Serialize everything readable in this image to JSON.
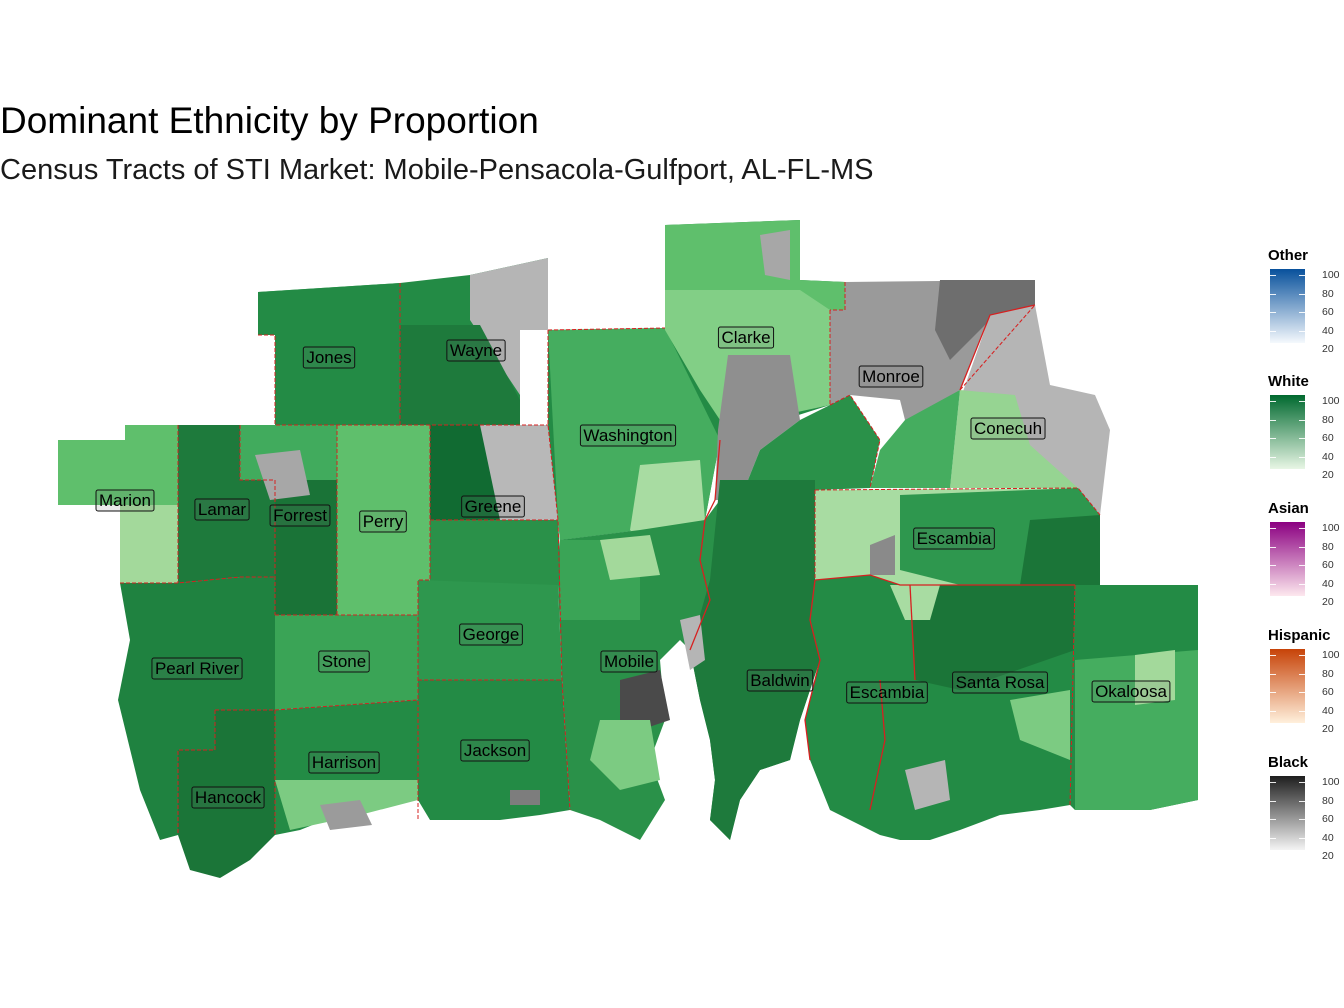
{
  "title": "Dominant Ethnicity by Proportion",
  "subtitle": "Census Tracts of STI Market: Mobile-Pensacola-Gulfport, AL-FL-MS",
  "counties": [
    {
      "name": "Jones",
      "id": "jones"
    },
    {
      "name": "Wayne",
      "id": "wayne"
    },
    {
      "name": "Clarke",
      "id": "clarke"
    },
    {
      "name": "Monroe",
      "id": "monroe"
    },
    {
      "name": "Conecuh",
      "id": "conecuh"
    },
    {
      "name": "Washington",
      "id": "washington"
    },
    {
      "name": "Marion",
      "id": "marion"
    },
    {
      "name": "Lamar",
      "id": "lamar"
    },
    {
      "name": "Forrest",
      "id": "forrest"
    },
    {
      "name": "Perry",
      "id": "perry"
    },
    {
      "name": "Greene",
      "id": "greene"
    },
    {
      "name": "Escambia",
      "id": "escambia-al"
    },
    {
      "name": "George",
      "id": "george"
    },
    {
      "name": "Mobile",
      "id": "mobile"
    },
    {
      "name": "Pearl River",
      "id": "pearl-river"
    },
    {
      "name": "Stone",
      "id": "stone"
    },
    {
      "name": "Baldwin",
      "id": "baldwin"
    },
    {
      "name": "Santa Rosa",
      "id": "santa-rosa"
    },
    {
      "name": "Escambia",
      "id": "escambia-fl"
    },
    {
      "name": "Okaloosa",
      "id": "okaloosa"
    },
    {
      "name": "Jackson",
      "id": "jackson"
    },
    {
      "name": "Harrison",
      "id": "harrison"
    },
    {
      "name": "Hancock",
      "id": "hancock"
    }
  ],
  "legends": [
    {
      "id": "other",
      "title": "Other",
      "low_color": "#f5f9fd",
      "high_color": "#08519c",
      "ticks": [
        "100",
        "80",
        "60",
        "40",
        "20"
      ]
    },
    {
      "id": "white",
      "title": "White",
      "low_color": "#e8f6e5",
      "high_color": "#00692f",
      "ticks": [
        "100",
        "80",
        "60",
        "40",
        "20"
      ]
    },
    {
      "id": "asian",
      "title": "Asian",
      "low_color": "#fde8ee",
      "high_color": "#8b0081",
      "ticks": [
        "100",
        "80",
        "60",
        "40",
        "20"
      ]
    },
    {
      "id": "hispanic",
      "title": "Hispanic",
      "low_color": "#fff0dc",
      "high_color": "#c74308",
      "ticks": [
        "100",
        "80",
        "60",
        "40",
        "20"
      ]
    },
    {
      "id": "black",
      "title": "Black",
      "low_color": "#f4f4f4",
      "high_color": "#1e1e1e",
      "ticks": [
        "100",
        "80",
        "60",
        "40",
        "20"
      ]
    }
  ]
}
